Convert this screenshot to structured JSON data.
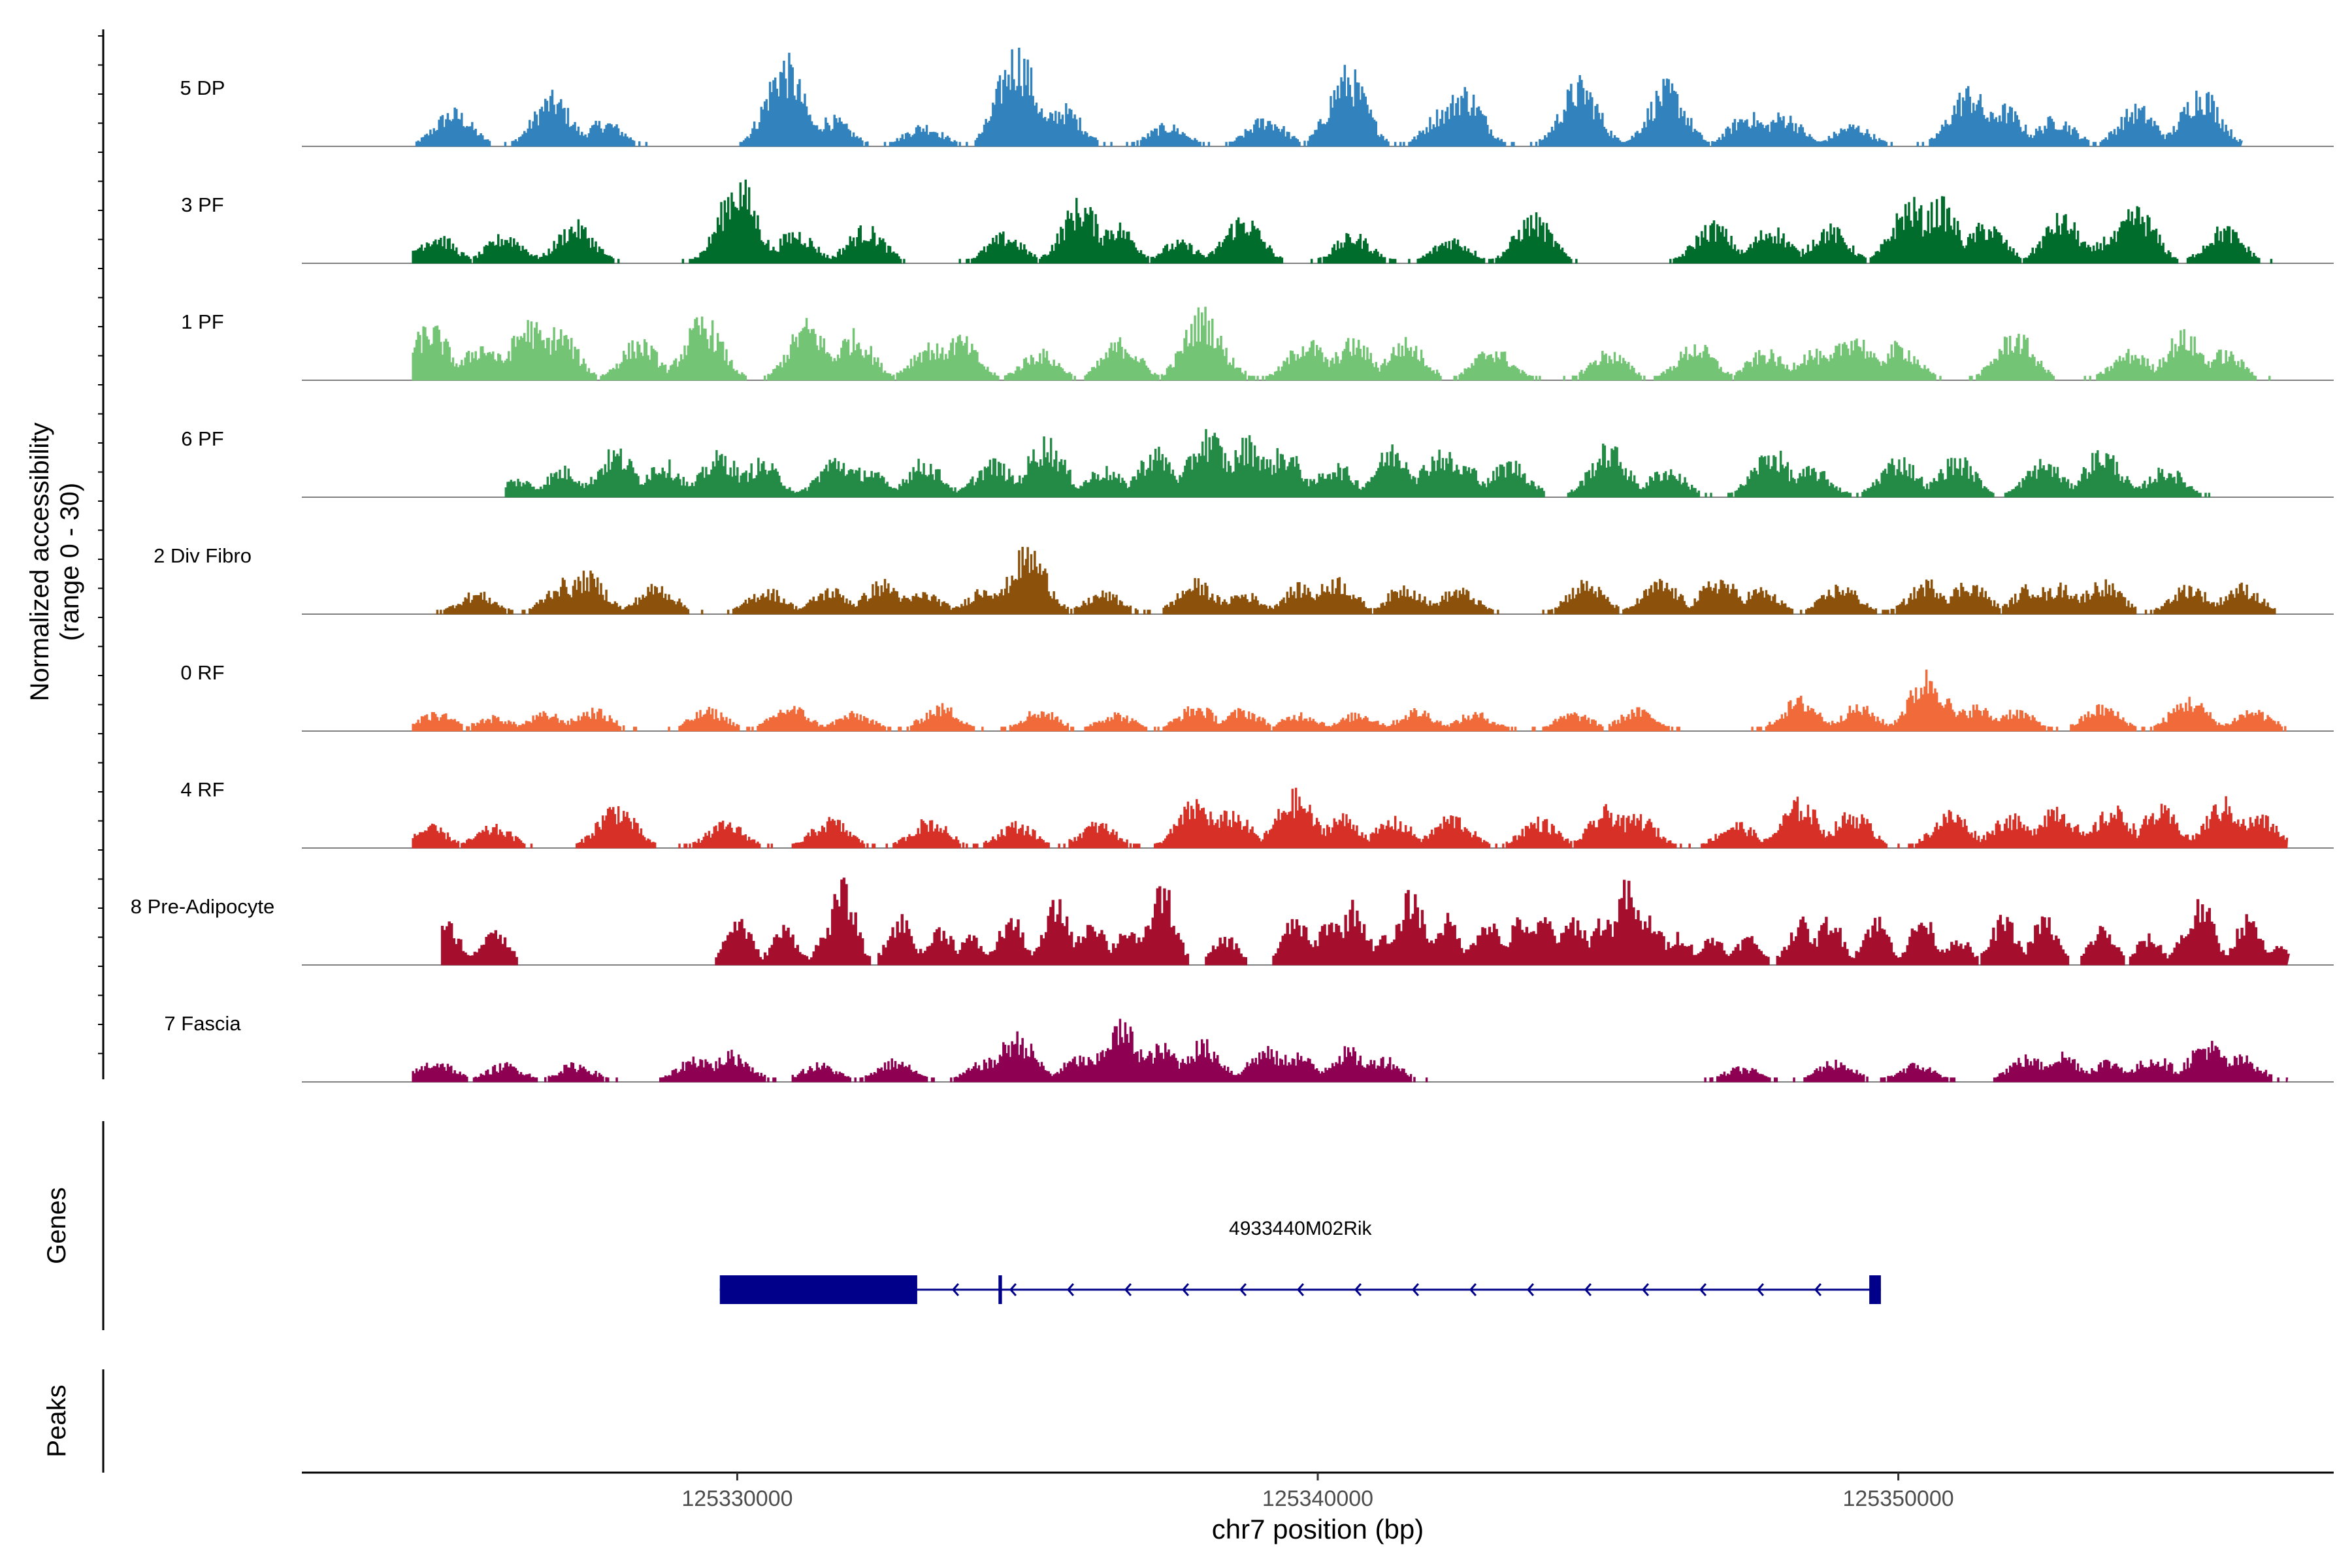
{
  "chart_data": {
    "type": "area",
    "title": "",
    "ylabel": "Normalized accessibility",
    "ylabel_range": "(range 0 - 30)",
    "xlabel": "chr7 position (bp)",
    "chromosome": "chr7",
    "xlim": [
      125322500,
      125357500
    ],
    "ylim": [
      0,
      30
    ],
    "x_ticks": [
      125330000,
      125340000,
      125350000
    ],
    "x_tick_labels": [
      "125330000",
      "125340000",
      "125350000"
    ],
    "tracks": [
      {
        "name": "5 DP",
        "color": "#3182BD",
        "start": 125324400,
        "end": 125355900,
        "peaks": [
          [
            125325100,
            10
          ],
          [
            125326800,
            14
          ],
          [
            125327700,
            7
          ],
          [
            125330800,
            24
          ],
          [
            125331600,
            8
          ],
          [
            125333200,
            6
          ],
          [
            125334800,
            27
          ],
          [
            125335600,
            11
          ],
          [
            125337400,
            6
          ],
          [
            125339100,
            8
          ],
          [
            125340500,
            21
          ],
          [
            125342200,
            11
          ],
          [
            125342500,
            16
          ],
          [
            125344500,
            18
          ],
          [
            125346000,
            17
          ],
          [
            125347400,
            9
          ],
          [
            125348000,
            9
          ],
          [
            125349200,
            6
          ],
          [
            125351200,
            16
          ],
          [
            125351800,
            11
          ],
          [
            125352700,
            8
          ],
          [
            125354100,
            11
          ],
          [
            125355200,
            16
          ]
        ]
      },
      {
        "name": "3 PF",
        "color": "#006D2C",
        "start": 125324400,
        "end": 125356700,
        "peaks": [
          [
            125324800,
            8
          ],
          [
            125326000,
            8
          ],
          [
            125327200,
            11
          ],
          [
            125329900,
            13
          ],
          [
            125330000,
            23
          ],
          [
            125331000,
            9
          ],
          [
            125332200,
            10
          ],
          [
            125334600,
            8
          ],
          [
            125335900,
            17
          ],
          [
            125336500,
            11
          ],
          [
            125337600,
            6
          ],
          [
            125338700,
            13
          ],
          [
            125340600,
            8
          ],
          [
            125342300,
            7
          ],
          [
            125343700,
            13
          ],
          [
            125346800,
            11
          ],
          [
            125347800,
            10
          ],
          [
            125348800,
            10
          ],
          [
            125350200,
            17
          ],
          [
            125350700,
            17
          ],
          [
            125351500,
            11
          ],
          [
            125352800,
            13
          ],
          [
            125353700,
            8
          ],
          [
            125354100,
            15
          ],
          [
            125355600,
            10
          ]
        ]
      },
      {
        "name": "1 PF",
        "color": "#74C476",
        "start": 125324400,
        "end": 125356700,
        "peaks": [
          [
            125324700,
            15
          ],
          [
            125325600,
            10
          ],
          [
            125326400,
            16
          ],
          [
            125326900,
            14
          ],
          [
            125328300,
            11
          ],
          [
            125329400,
            17
          ],
          [
            125331200,
            16
          ],
          [
            125332000,
            13
          ],
          [
            125333300,
            10
          ],
          [
            125333800,
            12
          ],
          [
            125335200,
            8
          ],
          [
            125336600,
            11
          ],
          [
            125338000,
            19
          ],
          [
            125338200,
            10
          ],
          [
            125339800,
            11
          ],
          [
            125340600,
            11
          ],
          [
            125341500,
            11
          ],
          [
            125343000,
            9
          ],
          [
            125345000,
            8
          ],
          [
            125346500,
            10
          ],
          [
            125347700,
            8
          ],
          [
            125348500,
            8
          ],
          [
            125349200,
            13
          ],
          [
            125350000,
            10
          ],
          [
            125352000,
            13
          ],
          [
            125354000,
            8
          ],
          [
            125354900,
            13
          ],
          [
            125355600,
            8
          ]
        ]
      },
      {
        "name": "6 PF",
        "color": "#238B45",
        "start": 125326000,
        "end": 125356700,
        "peaks": [
          [
            125326200,
            5
          ],
          [
            125327000,
            8
          ],
          [
            125327900,
            13
          ],
          [
            125328700,
            10
          ],
          [
            125329700,
            12
          ],
          [
            125330400,
            10
          ],
          [
            125331700,
            11
          ],
          [
            125332200,
            8
          ],
          [
            125333200,
            10
          ],
          [
            125334400,
            10
          ],
          [
            125335300,
            16
          ],
          [
            125336300,
            8
          ],
          [
            125337200,
            13
          ],
          [
            125338100,
            18
          ],
          [
            125338800,
            16
          ],
          [
            125339400,
            13
          ],
          [
            125340300,
            9
          ],
          [
            125341300,
            14
          ],
          [
            125342100,
            13
          ],
          [
            125342500,
            9
          ],
          [
            125343300,
            10
          ],
          [
            125345000,
            14
          ],
          [
            125346000,
            8
          ],
          [
            125347800,
            13
          ],
          [
            125348500,
            8
          ],
          [
            125350000,
            11
          ],
          [
            125351000,
            11
          ],
          [
            125352500,
            10
          ],
          [
            125353500,
            13
          ],
          [
            125354600,
            8
          ]
        ]
      },
      {
        "name": "2 Div Fibro",
        "color": "#8C510A",
        "start": 125324400,
        "end": 125356700,
        "peaks": [
          [
            125325500,
            6
          ],
          [
            125327000,
            9
          ],
          [
            125327400,
            11
          ],
          [
            125328600,
            8
          ],
          [
            125330500,
            7
          ],
          [
            125331600,
            7
          ],
          [
            125332500,
            9
          ],
          [
            125333200,
            6
          ],
          [
            125334300,
            8
          ],
          [
            125335000,
            18
          ],
          [
            125336300,
            6
          ],
          [
            125337900,
            9
          ],
          [
            125338700,
            6
          ],
          [
            125339700,
            8
          ],
          [
            125340300,
            10
          ],
          [
            125341500,
            8
          ],
          [
            125342400,
            7
          ],
          [
            125344600,
            9
          ],
          [
            125345900,
            9
          ],
          [
            125346900,
            10
          ],
          [
            125347600,
            7
          ],
          [
            125349000,
            8
          ],
          [
            125350500,
            9
          ],
          [
            125351200,
            9
          ],
          [
            125352300,
            8
          ],
          [
            125352800,
            8
          ],
          [
            125353500,
            9
          ],
          [
            125355000,
            8
          ],
          [
            125355900,
            8
          ]
        ]
      },
      {
        "name": "0 RF",
        "color": "#F16A3A",
        "start": 125324400,
        "end": 125356700,
        "peaks": [
          [
            125324800,
            5
          ],
          [
            125325800,
            4
          ],
          [
            125326700,
            5
          ],
          [
            125327500,
            6
          ],
          [
            125329500,
            6
          ],
          [
            125330900,
            7
          ],
          [
            125332000,
            5
          ],
          [
            125333500,
            7
          ],
          [
            125335200,
            6
          ],
          [
            125336500,
            5
          ],
          [
            125337900,
            7
          ],
          [
            125338700,
            6
          ],
          [
            125339700,
            5
          ],
          [
            125340700,
            5
          ],
          [
            125341700,
            6
          ],
          [
            125342700,
            5
          ],
          [
            125344400,
            5
          ],
          [
            125345500,
            6
          ],
          [
            125348300,
            9
          ],
          [
            125349300,
            7
          ],
          [
            125350500,
            16
          ],
          [
            125351300,
            7
          ],
          [
            125352000,
            6
          ],
          [
            125353500,
            7
          ],
          [
            125355000,
            9
          ],
          [
            125356100,
            6
          ]
        ]
      },
      {
        "name": "4 RF",
        "color": "#D73027",
        "start": 125324400,
        "end": 125356700,
        "peaks": [
          [
            125324700,
            6
          ],
          [
            125325800,
            6
          ],
          [
            125327900,
            12
          ],
          [
            125329800,
            7
          ],
          [
            125331600,
            8
          ],
          [
            125333300,
            8
          ],
          [
            125334800,
            7
          ],
          [
            125336200,
            7
          ],
          [
            125337900,
            13
          ],
          [
            125338500,
            10
          ],
          [
            125339600,
            15
          ],
          [
            125340400,
            9
          ],
          [
            125341300,
            8
          ],
          [
            125342300,
            9
          ],
          [
            125343800,
            8
          ],
          [
            125345000,
            11
          ],
          [
            125345500,
            9
          ],
          [
            125347200,
            7
          ],
          [
            125348300,
            13
          ],
          [
            125349200,
            10
          ],
          [
            125350900,
            10
          ],
          [
            125351900,
            9
          ],
          [
            125352700,
            12
          ],
          [
            125353700,
            11
          ],
          [
            125354500,
            11
          ],
          [
            125355600,
            13
          ],
          [
            125356200,
            9
          ]
        ]
      },
      {
        "name": "8 Pre-Adipocyte",
        "color": "#A50F2D",
        "start": 125324900,
        "end": 125356700,
        "peaks": [
          [
            125325000,
            13
          ],
          [
            125325800,
            13
          ],
          [
            125330000,
            15
          ],
          [
            125330800,
            12
          ],
          [
            125331600,
            12
          ],
          [
            125331800,
            25
          ],
          [
            125332800,
            15
          ],
          [
            125333500,
            12
          ],
          [
            125334000,
            9
          ],
          [
            125334700,
            15
          ],
          [
            125335500,
            20
          ],
          [
            125336100,
            15
          ],
          [
            125336700,
            12
          ],
          [
            125337300,
            25
          ],
          [
            125338400,
            9
          ],
          [
            125339600,
            15
          ],
          [
            125340200,
            15
          ],
          [
            125340600,
            19
          ],
          [
            125341100,
            9
          ],
          [
            125341600,
            23
          ],
          [
            125342200,
            15
          ],
          [
            125342900,
            15
          ],
          [
            125343500,
            15
          ],
          [
            125343900,
            15
          ],
          [
            125344400,
            15
          ],
          [
            125344900,
            15
          ],
          [
            125345300,
            25
          ],
          [
            125345700,
            15
          ],
          [
            125346200,
            10
          ],
          [
            125346800,
            9
          ],
          [
            125347400,
            9
          ],
          [
            125348300,
            14
          ],
          [
            125348800,
            15
          ],
          [
            125349600,
            15
          ],
          [
            125350400,
            15
          ],
          [
            125351000,
            9
          ],
          [
            125351800,
            15
          ],
          [
            125352500,
            15
          ],
          [
            125353500,
            12
          ],
          [
            125354300,
            9
          ],
          [
            125355000,
            12
          ],
          [
            125355200,
            20
          ],
          [
            125356000,
            15
          ],
          [
            125356600,
            6
          ]
        ]
      },
      {
        "name": "7 Fascia",
        "color": "#8E0152",
        "start": 125324400,
        "end": 125356700,
        "peaks": [
          [
            125324800,
            6
          ],
          [
            125326000,
            5
          ],
          [
            125327200,
            5
          ],
          [
            125329300,
            7
          ],
          [
            125329900,
            8
          ],
          [
            125331400,
            5
          ],
          [
            125332700,
            6
          ],
          [
            125334300,
            6
          ],
          [
            125334800,
            13
          ],
          [
            125335900,
            7
          ],
          [
            125336600,
            16
          ],
          [
            125337300,
            10
          ],
          [
            125338000,
            11
          ],
          [
            125339100,
            9
          ],
          [
            125339600,
            8
          ],
          [
            125340500,
            9
          ],
          [
            125341100,
            7
          ],
          [
            125347300,
            4
          ],
          [
            125348900,
            6
          ],
          [
            125350300,
            5
          ],
          [
            125352200,
            7
          ],
          [
            125352800,
            8
          ],
          [
            125353600,
            6
          ],
          [
            125354400,
            7
          ],
          [
            125355300,
            11
          ],
          [
            125355900,
            7
          ]
        ]
      }
    ],
    "genes_label": "Genes",
    "gene": {
      "name": "4933440M02Rik",
      "color": "#00008B",
      "strand": "-",
      "start": 125329700,
      "end": 125349700,
      "exons": [
        [
          125329700,
          125333100
        ],
        [
          125334500,
          125334560
        ],
        [
          125349500,
          125349700
        ]
      ]
    },
    "peaks_label": "Peaks"
  }
}
